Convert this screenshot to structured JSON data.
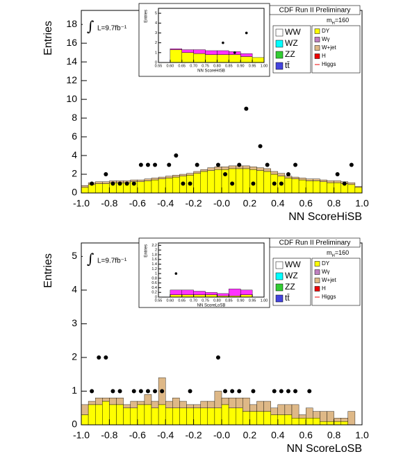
{
  "chart_data": [
    {
      "type": "histogram",
      "title": "CDF Run II Preliminary",
      "xlabel": "NN ScoreHiSB",
      "ylabel": "Entries",
      "integral": "∫",
      "luminosity": "L=9.7fb⁻¹",
      "mass_label": [
        "m",
        "H",
        "=160"
      ],
      "legend": [
        {
          "name": "WW",
          "color": "#ffffff"
        },
        {
          "name": "WZ",
          "color": "#00ffff"
        },
        {
          "name": "ZZ",
          "color": "#33cc33"
        },
        {
          "name": "tt̄",
          "color": "#4444dd"
        },
        {
          "name": "DY",
          "color": "#ffff00"
        },
        {
          "name": "Wγ",
          "color": "#c080c0"
        },
        {
          "name": "W+jet",
          "color": "#deb887"
        },
        {
          "name": "H",
          "color": "#ee0000"
        },
        {
          "name": "Higgs",
          "color": "#ee0000",
          "style": "line"
        }
      ],
      "bins": [
        -1.0,
        -0.95,
        -0.9,
        -0.85,
        -0.8,
        -0.75,
        -0.7,
        -0.65,
        -0.6,
        -0.55,
        -0.5,
        -0.45,
        -0.4,
        -0.35,
        -0.3,
        -0.25,
        -0.2,
        -0.15,
        -0.1,
        -0.05,
        0.0,
        0.05,
        0.1,
        0.15,
        0.2,
        0.25,
        0.3,
        0.35,
        0.4,
        0.45,
        0.5,
        0.55,
        0.6,
        0.65,
        0.7,
        0.75,
        0.8,
        0.85,
        0.9,
        0.95,
        1.0
      ],
      "series": [
        {
          "name": "DY",
          "color": "#ffff00",
          "values": [
            0.6,
            0.9,
            1.0,
            1.0,
            1.1,
            1.1,
            1.1,
            1.2,
            1.2,
            1.3,
            1.4,
            1.5,
            1.6,
            1.7,
            1.8,
            1.9,
            2.1,
            2.3,
            2.4,
            2.5,
            2.5,
            2.6,
            2.6,
            2.6,
            2.5,
            2.4,
            2.3,
            2.0,
            1.8,
            1.6,
            1.5,
            1.4,
            1.3,
            1.3,
            1.2,
            1.1,
            1.1,
            1.0,
            0.9,
            0.6
          ]
        },
        {
          "name": "W+jet",
          "color": "#deb887",
          "values": [
            0.2,
            0.2,
            0.2,
            0.2,
            0.2,
            0.2,
            0.2,
            0.2,
            0.2,
            0.2,
            0.2,
            0.2,
            0.2,
            0.2,
            0.2,
            0.2,
            0.2,
            0.2,
            0.3,
            0.3,
            0.3,
            0.3,
            0.3,
            0.3,
            0.3,
            0.3,
            0.3,
            0.3,
            0.3,
            0.2,
            0.2,
            0.2,
            0.2,
            0.2,
            0.2,
            0.2,
            0.2,
            0.2,
            0.2,
            0.1
          ]
        }
      ],
      "data_points": {
        "color": "#000000",
        "values": [
          null,
          1,
          null,
          2,
          1,
          1,
          1,
          1,
          3,
          3,
          3,
          null,
          3,
          4,
          1,
          1,
          3,
          null,
          null,
          3,
          2,
          1,
          3,
          9,
          1,
          5,
          3,
          1,
          1,
          2,
          3,
          null,
          null,
          null,
          null,
          null,
          2,
          1,
          3,
          null
        ]
      },
      "xlim": [
        -1.0,
        1.0
      ],
      "ylim": [
        0,
        19.5
      ],
      "xticks": [
        {
          "value": -1.0,
          "label": "-1.0"
        },
        {
          "value": -0.8,
          "label": "-0.8"
        },
        {
          "value": -0.6,
          "label": "-0.6"
        },
        {
          "value": -0.4,
          "label": "-0.4"
        },
        {
          "value": -0.2,
          "label": "-0.2"
        },
        {
          "value": 0.0,
          "label": "-0.0"
        },
        {
          "value": 0.2,
          "label": "0.2"
        },
        {
          "value": 0.4,
          "label": "0.4"
        },
        {
          "value": 0.6,
          "label": "0.6"
        },
        {
          "value": 0.8,
          "label": "0.8"
        },
        {
          "value": 1.0,
          "label": "1.0"
        }
      ],
      "yticks": [
        0,
        2,
        4,
        6,
        8,
        10,
        12,
        14,
        16,
        18
      ]
    },
    {
      "type": "histogram",
      "xlabel": "NN ScoreHiSB",
      "ylabel": "Entries",
      "bins": [
        0.55,
        0.6,
        0.65,
        0.7,
        0.75,
        0.8,
        0.85,
        0.9,
        0.95,
        1.0
      ],
      "series": [
        {
          "name": "DY",
          "color": "#ffff00",
          "values": [
            0,
            1.3,
            1.0,
            0.9,
            0.8,
            0.8,
            0.8,
            0.6,
            0.5
          ]
        },
        {
          "name": "W+jet",
          "color": "#ff33ff",
          "values": [
            0,
            0.1,
            0.3,
            0.4,
            0.4,
            0.4,
            0.3,
            0.3,
            0
          ]
        }
      ],
      "data_points": {
        "color": "#000000",
        "values": [
          null,
          null,
          null,
          null,
          null,
          2,
          1,
          3,
          null
        ]
      },
      "xlim": [
        0.55,
        1.0
      ],
      "ylim": [
        0,
        5.5
      ],
      "xticks": [
        {
          "value": 0.55,
          "label": "0.55"
        },
        {
          "value": 0.6,
          "label": "0.60"
        },
        {
          "value": 0.65,
          "label": "0.65"
        },
        {
          "value": 0.7,
          "label": "0.70"
        },
        {
          "value": 0.75,
          "label": "0.75"
        },
        {
          "value": 0.8,
          "label": "0.80"
        },
        {
          "value": 0.85,
          "label": "0.85"
        },
        {
          "value": 0.9,
          "label": "0.90"
        },
        {
          "value": 0.95,
          "label": "0.95"
        },
        {
          "value": 1.0,
          "label": "1.00"
        }
      ],
      "yticks": [
        0,
        1,
        2,
        3,
        4,
        5
      ]
    },
    {
      "type": "histogram",
      "title": "CDF Run II Preliminary",
      "xlabel": "NN ScoreLoSB",
      "ylabel": "Entries",
      "integral": "∫",
      "luminosity": "L=9.7fb⁻¹",
      "mass_label": [
        "m",
        "H",
        "=160"
      ],
      "legend": [
        {
          "name": "WW",
          "color": "#ffffff"
        },
        {
          "name": "WZ",
          "color": "#00ffff"
        },
        {
          "name": "ZZ",
          "color": "#33cc33"
        },
        {
          "name": "tt̄",
          "color": "#4444dd"
        },
        {
          "name": "DY",
          "color": "#ffff00"
        },
        {
          "name": "Wγ",
          "color": "#c080c0"
        },
        {
          "name": "W+jet",
          "color": "#deb887"
        },
        {
          "name": "H",
          "color": "#ee0000"
        },
        {
          "name": "Higgs",
          "color": "#ee0000",
          "style": "line"
        }
      ],
      "bins": [
        -1.0,
        -0.95,
        -0.9,
        -0.85,
        -0.8,
        -0.75,
        -0.7,
        -0.65,
        -0.6,
        -0.55,
        -0.5,
        -0.45,
        -0.4,
        -0.35,
        -0.3,
        -0.25,
        -0.2,
        -0.15,
        -0.1,
        -0.05,
        0.0,
        0.05,
        0.1,
        0.15,
        0.2,
        0.25,
        0.3,
        0.35,
        0.4,
        0.45,
        0.5,
        0.55,
        0.6,
        0.65,
        0.7,
        0.75,
        0.8,
        0.85,
        0.9,
        0.95,
        1.0
      ],
      "series": [
        {
          "name": "DY",
          "color": "#ffff00",
          "values": [
            0.3,
            0.6,
            0.6,
            0.7,
            0.6,
            0.6,
            0.5,
            0.5,
            0.6,
            0.6,
            0.5,
            0.6,
            0.5,
            0.5,
            0.5,
            0.5,
            0.5,
            0.5,
            0.5,
            0.5,
            0.6,
            0.5,
            0.5,
            0.4,
            0.4,
            0.4,
            0.4,
            0.3,
            0.3,
            0.3,
            0.2,
            0.2,
            0.2,
            0.2,
            0.1,
            0.1,
            0.1,
            0.1,
            0.0,
            0.0
          ]
        },
        {
          "name": "W+jet",
          "color": "#deb887",
          "values": [
            0.3,
            0.1,
            0.2,
            0.1,
            0.2,
            0.2,
            0.1,
            0.2,
            0.1,
            0.3,
            0.2,
            0.8,
            0.2,
            0.3,
            0.2,
            0.1,
            0.1,
            0.2,
            0.2,
            0.5,
            0.2,
            0.3,
            0.3,
            0.4,
            0.2,
            0.3,
            0.3,
            0.2,
            0.3,
            0.3,
            0.4,
            0.1,
            0.3,
            0.2,
            0.3,
            0.3,
            0.1,
            0.1,
            0.4,
            0.0
          ]
        }
      ],
      "data_points": {
        "color": "#000000",
        "values": [
          null,
          1,
          2,
          2,
          1,
          1,
          null,
          1,
          1,
          1,
          1,
          1,
          null,
          null,
          null,
          1,
          null,
          null,
          null,
          2,
          1,
          1,
          1,
          null,
          1,
          null,
          null,
          1,
          1,
          1,
          1,
          null,
          1,
          null,
          null,
          null,
          null,
          null,
          null,
          null
        ]
      },
      "xlim": [
        -1.0,
        1.0
      ],
      "ylim": [
        0,
        5.4
      ],
      "xticks": [
        {
          "value": -1.0,
          "label": "-1.0"
        },
        {
          "value": -0.8,
          "label": "-0.8"
        },
        {
          "value": -0.6,
          "label": "-0.6"
        },
        {
          "value": -0.4,
          "label": "-0.4"
        },
        {
          "value": -0.2,
          "label": "-0.2"
        },
        {
          "value": 0.0,
          "label": "-0.0"
        },
        {
          "value": 0.2,
          "label": "0.2"
        },
        {
          "value": 0.4,
          "label": "0.4"
        },
        {
          "value": 0.6,
          "label": "0.6"
        },
        {
          "value": 0.8,
          "label": "0.8"
        },
        {
          "value": 1.0,
          "label": "1.0"
        }
      ],
      "yticks": [
        0,
        1,
        2,
        3,
        4,
        5
      ]
    },
    {
      "type": "histogram",
      "xlabel": "NN ScoreLoSB",
      "ylabel": "Entries",
      "bins": [
        0.55,
        0.6,
        0.65,
        0.7,
        0.75,
        0.8,
        0.85,
        0.9,
        0.95,
        1.0
      ],
      "series": [
        {
          "name": "DY",
          "color": "#ffff00",
          "values": [
            0,
            0.1,
            0.1,
            0.1,
            0.1,
            0.05,
            0.05,
            0.1,
            0
          ]
        },
        {
          "name": "W+jet",
          "color": "#ff33ff",
          "values": [
            0,
            0.2,
            0.2,
            0.15,
            0.1,
            0.1,
            0.3,
            0.2,
            0
          ]
        }
      ],
      "data_points": {
        "color": "#000000",
        "values": [
          null,
          1,
          null,
          null,
          null,
          null,
          null,
          null,
          null
        ]
      },
      "xlim": [
        0.55,
        1.0
      ],
      "ylim": [
        0,
        2.3
      ],
      "xticks": [
        {
          "value": 0.55,
          "label": "0.55"
        },
        {
          "value": 0.6,
          "label": "0.60"
        },
        {
          "value": 0.65,
          "label": "0.65"
        },
        {
          "value": 0.7,
          "label": "0.70"
        },
        {
          "value": 0.75,
          "label": "0.75"
        },
        {
          "value": 0.8,
          "label": "0.80"
        },
        {
          "value": 0.85,
          "label": "0.85"
        },
        {
          "value": 0.9,
          "label": "0.90"
        },
        {
          "value": 0.95,
          "label": "0.95"
        },
        {
          "value": 1.0,
          "label": "1.00"
        }
      ],
      "yticks": [
        0,
        0.2,
        0.4,
        0.6,
        0.8,
        1,
        1.2,
        1.4,
        1.6,
        1.8,
        2,
        2.2
      ]
    }
  ]
}
